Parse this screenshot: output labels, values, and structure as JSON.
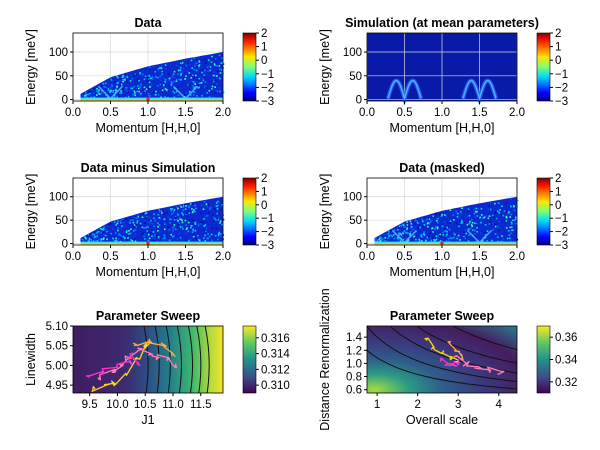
{
  "chart_data": [
    {
      "type": "heatmap",
      "title": "Data",
      "xlabel": "Momentum [H,H,0]",
      "ylabel": "Energy [meV]",
      "xlim": [
        0.0,
        2.0
      ],
      "ylim": [
        -3,
        140
      ],
      "xticks": [
        "0.0",
        "0.5",
        "1.0",
        "1.5",
        "2.0"
      ],
      "yticks": [
        "0",
        "50",
        "100"
      ],
      "colorbar": {
        "range": [
          -3,
          2
        ],
        "ticks": [
          "2",
          "1",
          "0",
          "−1",
          "−2",
          "−3"
        ],
        "colormap": "jet"
      },
      "kinematic_edge": {
        "x": [
          0.1,
          0.5,
          1.0,
          1.5,
          2.0
        ],
        "y": [
          12,
          47,
          70,
          86,
          100
        ]
      },
      "dispersion_minima_x": [
        0.5,
        1.5
      ],
      "grid": true
    },
    {
      "type": "heatmap",
      "title": "Simulation (at mean parameters)",
      "xlabel": "Momentum [H,H,0]",
      "ylabel": "Energy [meV]",
      "xlim": [
        0.0,
        2.0
      ],
      "ylim": [
        -3,
        140
      ],
      "xticks": [
        "0.0",
        "0.5",
        "1.0",
        "1.5",
        "2.0"
      ],
      "yticks": [
        "0",
        "50",
        "100"
      ],
      "colorbar": {
        "range": [
          -3,
          2
        ],
        "ticks": [
          "2",
          "1",
          "0",
          "−1",
          "−2",
          "−3"
        ],
        "colormap": "jet"
      },
      "dispersion_minima_x": [
        0.5,
        1.5
      ],
      "dispersion_max_energy": 40,
      "grid": true
    },
    {
      "type": "heatmap",
      "title": "Data minus Simulation",
      "xlabel": "Momentum [H,H,0]",
      "ylabel": "Energy [meV]",
      "xlim": [
        0.0,
        2.0
      ],
      "ylim": [
        -3,
        140
      ],
      "xticks": [
        "0.0",
        "0.5",
        "1.0",
        "1.5",
        "2.0"
      ],
      "yticks": [
        "0",
        "50",
        "100"
      ],
      "colorbar": {
        "range": [
          -3,
          2
        ],
        "ticks": [
          "2",
          "1",
          "0",
          "−1",
          "−2",
          "−3"
        ],
        "colormap": "jet"
      },
      "grid": true
    },
    {
      "type": "heatmap",
      "title": "Data (masked)",
      "xlabel": "Momentum [H,H,0]",
      "ylabel": "Energy [meV]",
      "xlim": [
        0.0,
        2.0
      ],
      "ylim": [
        -3,
        140
      ],
      "xticks": [
        "0.0",
        "0.5",
        "1.0",
        "1.5",
        "2.0"
      ],
      "yticks": [
        "0",
        "50",
        "100"
      ],
      "colorbar": {
        "range": [
          -3,
          2
        ],
        "ticks": [
          "2",
          "1",
          "0",
          "−1",
          "−2",
          "−3"
        ],
        "colormap": "jet"
      },
      "grid": true
    },
    {
      "type": "heatmap",
      "title": "Parameter Sweep",
      "xlabel": "J1",
      "ylabel": "Linewidth",
      "xlim": [
        9.2,
        11.9
      ],
      "ylim": [
        4.93,
        5.1
      ],
      "xticks": [
        "9.5",
        "10.0",
        "10.5",
        "11.0",
        "11.5"
      ],
      "xtick_values": [
        9.5,
        10.0,
        10.5,
        11.0,
        11.5
      ],
      "yticks": [
        "4.95",
        "5.00",
        "5.05",
        "5.10"
      ],
      "ytick_values": [
        4.95,
        5.0,
        5.05,
        5.1
      ],
      "colorbar": {
        "range": [
          0.309,
          0.3175
        ],
        "ticks": [
          "0.316",
          "0.314",
          "0.312",
          "0.310"
        ],
        "tick_values": [
          0.316,
          0.314,
          0.312,
          0.31
        ],
        "colormap": "viridis"
      },
      "contour_x": [
        10.55,
        10.75,
        10.95,
        11.15,
        11.35,
        11.5,
        11.65
      ],
      "walk_traces": {
        "yellow": [
          [
            9.6,
            4.94
          ],
          [
            9.8,
            4.95
          ],
          [
            9.95,
            4.955
          ],
          [
            10.15,
            4.98
          ],
          [
            10.35,
            5.02
          ],
          [
            10.5,
            5.05
          ],
          [
            10.6,
            5.06
          ]
        ],
        "pink": [
          [
            9.7,
            4.97
          ],
          [
            9.95,
            4.99
          ],
          [
            10.1,
            5.0
          ],
          [
            10.2,
            5.02
          ],
          [
            10.4,
            5.04
          ],
          [
            10.6,
            5.03
          ],
          [
            10.75,
            5.02
          ],
          [
            10.9,
            5.02
          ],
          [
            11.0,
            5.0
          ]
        ],
        "magenta": [
          [
            9.5,
            4.97
          ],
          [
            9.75,
            4.985
          ],
          [
            10.0,
            4.995
          ],
          [
            10.2,
            5.01
          ],
          [
            10.25,
            5.03
          ],
          [
            10.4,
            5.0
          ]
        ],
        "orange": [
          [
            10.3,
            5.05
          ],
          [
            10.55,
            5.06
          ],
          [
            10.85,
            5.05
          ],
          [
            11.0,
            5.03
          ]
        ]
      }
    },
    {
      "type": "heatmap",
      "title": "Parameter Sweep",
      "xlabel": "Overall scale",
      "ylabel": "Distance Renormalization",
      "xlim": [
        0.75,
        4.45
      ],
      "ylim": [
        0.55,
        1.57
      ],
      "xticks": [
        "1",
        "2",
        "3",
        "4"
      ],
      "xtick_values": [
        1,
        2,
        3,
        4
      ],
      "yticks": [
        "0.6",
        "0.8",
        "1.0",
        "1.2",
        "1.4"
      ],
      "ytick_values": [
        0.6,
        0.8,
        1.0,
        1.2,
        1.4
      ],
      "colorbar": {
        "range": [
          0.31,
          0.37
        ],
        "ticks": [
          "0.36",
          "0.34",
          "0.32"
        ],
        "tick_values": [
          0.36,
          0.34,
          0.32
        ],
        "colormap": "viridis"
      },
      "walk_traces": {
        "yellow": [
          [
            2.2,
            1.35
          ],
          [
            2.4,
            1.25
          ],
          [
            2.6,
            1.15
          ],
          [
            2.8,
            1.1
          ],
          [
            3.0,
            1.05
          ]
        ],
        "pink": [
          [
            2.9,
            1.1
          ],
          [
            3.2,
            1.0
          ],
          [
            3.5,
            0.95
          ],
          [
            3.8,
            0.9
          ],
          [
            4.05,
            0.88
          ]
        ],
        "magenta": [
          [
            2.6,
            1.05
          ],
          [
            2.75,
            1.0
          ],
          [
            2.9,
            0.98
          ],
          [
            3.0,
            1.0
          ]
        ],
        "orange": [
          [
            2.8,
            1.3
          ],
          [
            2.95,
            1.2
          ],
          [
            3.1,
            1.1
          ]
        ]
      }
    }
  ]
}
